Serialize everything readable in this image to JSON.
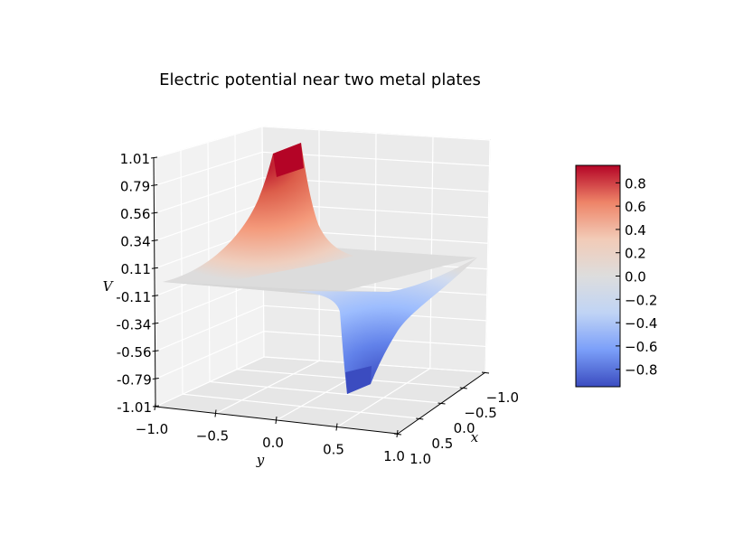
{
  "chart_data": {
    "type": "surface",
    "title": "Electric potential near two metal plates",
    "xlabel": "x",
    "ylabel": "y",
    "zlabel": "V",
    "x_range": [
      -1.0,
      1.0
    ],
    "y_range": [
      -1.0,
      1.0
    ],
    "z_range": [
      -1.01,
      1.01
    ],
    "x_ticks": [
      "−1.0",
      "−0.5",
      "0.0",
      "0.5",
      "1.0"
    ],
    "y_ticks": [
      "−1.0",
      "−0.5",
      "0.0",
      "0.5",
      "1.0"
    ],
    "z_ticks": [
      "1.01",
      "0.79",
      "0.56",
      "0.34",
      "0.11",
      "-0.11",
      "-0.34",
      "-0.56",
      "-0.79",
      "-1.01"
    ],
    "peak": {
      "x": -1.0,
      "y": -0.2,
      "V": 1.01
    },
    "trough": {
      "x": 1.0,
      "y": 0.2,
      "V": -1.01
    },
    "colormap": "coolwarm",
    "colorbar": {
      "range": [
        -0.95,
        0.95
      ],
      "ticks": [
        "0.8",
        "0.6",
        "0.4",
        "0.2",
        "0.0",
        "−0.2",
        "−0.4",
        "−0.6",
        "−0.8"
      ],
      "colors": [
        "#3b4cc0",
        "#7b9ff9",
        "#c0d4f5",
        "#dddddd",
        "#f2cbb7",
        "#ee8468",
        "#b40426"
      ]
    },
    "grid": true
  }
}
